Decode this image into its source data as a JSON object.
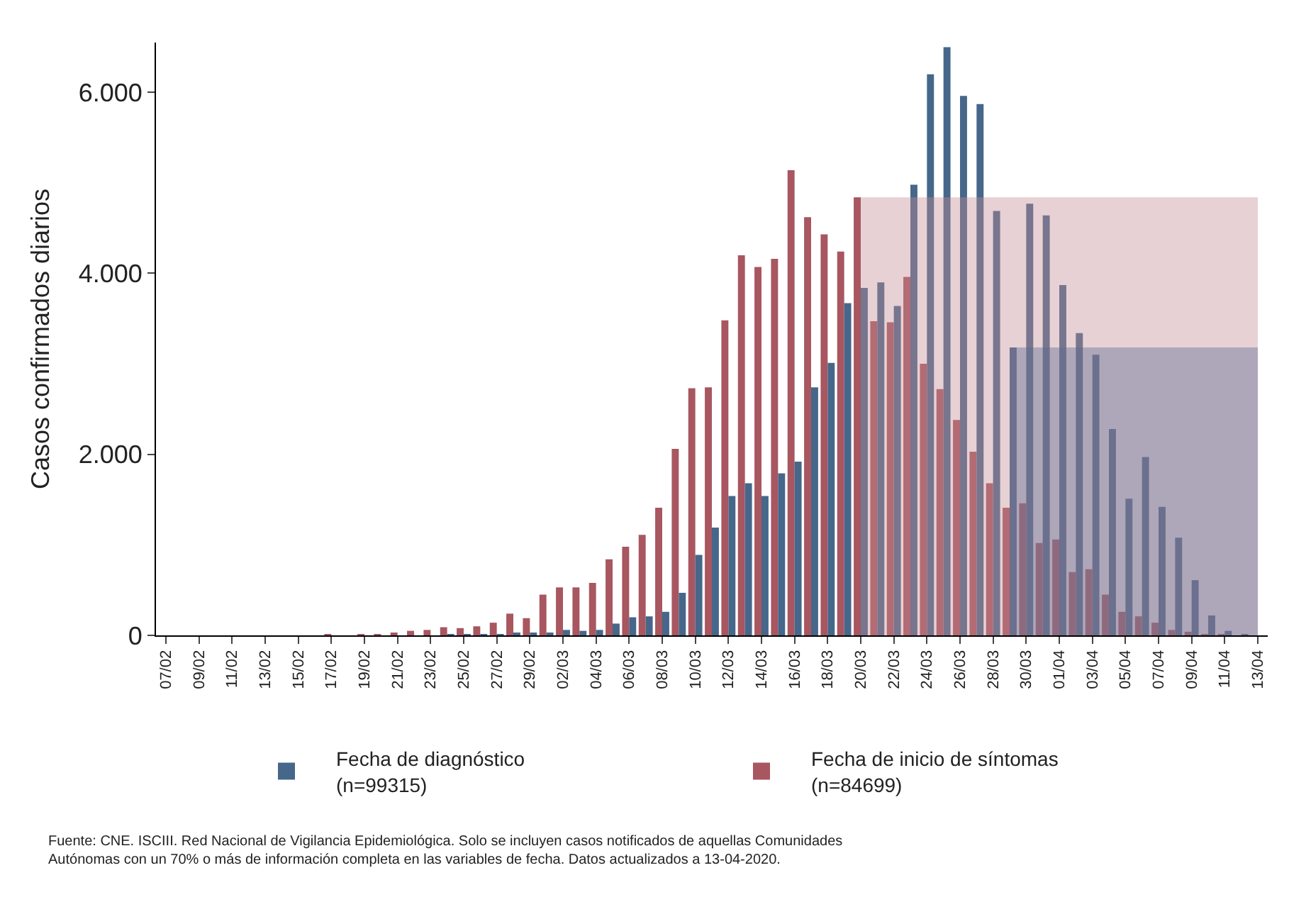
{
  "chart_data": {
    "type": "bar",
    "ylabel": "Casos confirmados diarios",
    "categories": [
      "07/02",
      null,
      "09/02",
      null,
      "11/02",
      null,
      "13/02",
      null,
      "15/02",
      null,
      "17/02",
      null,
      "19/02",
      null,
      "21/02",
      null,
      "23/02",
      null,
      "25/02",
      null,
      "27/02",
      null,
      "29/02",
      null,
      "02/03",
      null,
      "04/03",
      null,
      "06/03",
      null,
      "08/03",
      null,
      "10/03",
      null,
      "12/03",
      null,
      "14/03",
      null,
      "16/03",
      null,
      "18/03",
      null,
      "20/03",
      null,
      "22/03",
      null,
      "24/03",
      null,
      "26/03",
      null,
      "28/03",
      null,
      "30/03",
      null,
      "01/04",
      null,
      "03/04",
      null,
      "05/04",
      null,
      "07/04",
      null,
      "09/04",
      null,
      "11/04",
      null,
      "13/04"
    ],
    "series": [
      {
        "name": "Fecha de inicio de síntomas\n(n=84699)",
        "color": "#a85660",
        "values": [
          0,
          0,
          0,
          0,
          0,
          0,
          0,
          0,
          0,
          0,
          10,
          0,
          10,
          10,
          30,
          50,
          60,
          90,
          80,
          100,
          140,
          240,
          190,
          450,
          530,
          530,
          580,
          840,
          980,
          1110,
          1410,
          2060,
          2730,
          2740,
          3480,
          4200,
          4070,
          4160,
          5140,
          4620,
          4430,
          4240,
          4840,
          3470,
          3460,
          3960,
          3000,
          2720,
          2380,
          2030,
          1680,
          1410,
          1460,
          1020,
          1060,
          700,
          730,
          450,
          260,
          210,
          140,
          60,
          40,
          10,
          10,
          0,
          0
        ]
      },
      {
        "name": "Fecha de diagnóstico\n(n=99315)",
        "color": "#46678a",
        "values": [
          0,
          0,
          0,
          0,
          0,
          0,
          0,
          0,
          0,
          0,
          0,
          0,
          0,
          0,
          0,
          0,
          0,
          10,
          10,
          10,
          10,
          20,
          20,
          30,
          60,
          50,
          60,
          130,
          200,
          210,
          260,
          470,
          890,
          1190,
          1540,
          1680,
          1540,
          1790,
          1920,
          2740,
          3010,
          3670,
          3840,
          3900,
          3640,
          4980,
          6200,
          6500,
          5960,
          5870,
          4690,
          3180,
          4770,
          4640,
          3870,
          3340,
          3100,
          2280,
          1510,
          1970,
          1420,
          1080,
          610,
          220,
          50,
          10,
          0
        ]
      },
      {
        "type": "area",
        "color": "#c48c93",
        "values": [
          null,
          null,
          null,
          null,
          null,
          null,
          null,
          null,
          null,
          null,
          null,
          null,
          null,
          null,
          null,
          null,
          null,
          null,
          null,
          null,
          null,
          null,
          null,
          null,
          null,
          null,
          null,
          null,
          null,
          null,
          null,
          null,
          null,
          null,
          null,
          null,
          null,
          null,
          null,
          null,
          null,
          null,
          4840,
          4840,
          4840,
          4840,
          4840,
          4840,
          4840,
          4840,
          4840,
          4840,
          4840,
          4840,
          4840,
          4840,
          4840,
          4840,
          4840,
          4840,
          4840,
          4840,
          4840,
          4840,
          4840,
          4840,
          4840
        ]
      },
      {
        "type": "area",
        "color": "#5a6a90",
        "values": [
          null,
          null,
          null,
          null,
          null,
          null,
          null,
          null,
          null,
          null,
          null,
          null,
          null,
          null,
          null,
          null,
          null,
          null,
          null,
          null,
          null,
          null,
          null,
          null,
          null,
          null,
          null,
          null,
          null,
          null,
          null,
          null,
          null,
          null,
          null,
          null,
          null,
          null,
          null,
          null,
          null,
          null,
          null,
          null,
          null,
          null,
          null,
          null,
          null,
          null,
          null,
          3180,
          3180,
          3180,
          3180,
          3180,
          3180,
          3180,
          3180,
          3180,
          3180,
          3180,
          3180,
          3180,
          3180,
          3180,
          3180
        ]
      }
    ],
    "ylim": [
      0,
      6550
    ],
    "yticks": [
      0,
      {
        "value": 2000,
        "label": "2.000"
      },
      {
        "value": 4000,
        "label": "4.000"
      },
      {
        "value": 6000,
        "label": "6.000"
      }
    ],
    "grid": false,
    "legend": "bottom",
    "annotations": [
      "Fuente: CNE. ISCIII. Red Nacional de Vigilancia Epidemiológica. Solo se incluyen casos notificados de aquellas Comunidades\nAutónomas con un 70% o más de información completa en las variables de fecha. Datos actualizados a 13-04-2020."
    ]
  }
}
